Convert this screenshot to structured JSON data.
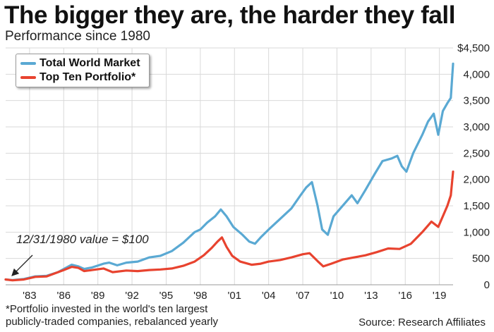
{
  "header": {
    "title": "The bigger they are, the harder they fall",
    "subtitle": "Performance since 1980"
  },
  "annotation": {
    "text": "12/31/1980 value = $100"
  },
  "footnote": "*Portfolio invested in the world's ten largest publicly-traded companies, rebalanced yearly",
  "source": "Source: Research Affiliates",
  "legend_placement": "top-left",
  "chart_data": {
    "type": "line",
    "title": "The bigger they are, the harder they fall",
    "subtitle": "Performance since 1980",
    "xlabel": "",
    "ylabel": "",
    "xlim": [
      1980.9,
      2020.2
    ],
    "ylim": [
      0,
      4500
    ],
    "grid": true,
    "x_ticks": [
      1983,
      1986,
      1989,
      1992,
      1995,
      1998,
      2001,
      2004,
      2007,
      2010,
      2013,
      2016,
      2019
    ],
    "x_tick_labels": [
      "'83",
      "'86",
      "'89",
      "'92",
      "'95",
      "'98",
      "'01",
      "'04",
      "'07",
      "'10",
      "'13",
      "'16",
      "'19"
    ],
    "y_ticks": [
      0,
      500,
      1000,
      1500,
      2000,
      2500,
      3000,
      3500,
      4000,
      4500
    ],
    "y_tick_labels": [
      "0",
      "500",
      "1,000",
      "1,500",
      "2,000",
      "2,500",
      "3,000",
      "3,500",
      "4,000",
      "$4,500"
    ],
    "series": [
      {
        "name": "Total World Market",
        "color": "#5aa9d3",
        "x": [
          1980.9,
          1981.5,
          1982.5,
          1983.5,
          1984.5,
          1985.5,
          1986.0,
          1986.7,
          1987.3,
          1987.8,
          1988.5,
          1989.5,
          1990.0,
          1990.7,
          1991.5,
          1992.5,
          1993.5,
          1994.5,
          1995.5,
          1996.5,
          1997.5,
          1998.0,
          1998.6,
          1999.3,
          1999.8,
          2000.3,
          2000.9,
          2001.7,
          2002.3,
          2002.8,
          2003.3,
          2004.0,
          2005.0,
          2006.0,
          2006.8,
          2007.3,
          2007.8,
          2008.3,
          2008.7,
          2009.2,
          2009.7,
          2010.3,
          2010.7,
          2011.3,
          2011.8,
          2012.5,
          2013.3,
          2014.0,
          2014.8,
          2015.3,
          2015.7,
          2016.1,
          2016.7,
          2017.5,
          2018.0,
          2018.5,
          2018.9,
          2019.3,
          2019.7,
          2020.0,
          2020.2
        ],
        "y": [
          100,
          90,
          110,
          160,
          170,
          240,
          300,
          380,
          350,
          300,
          330,
          400,
          420,
          370,
          420,
          440,
          520,
          550,
          640,
          800,
          1000,
          1050,
          1180,
          1300,
          1430,
          1300,
          1100,
          950,
          820,
          780,
          900,
          1050,
          1250,
          1450,
          1700,
          1850,
          1950,
          1500,
          1050,
          950,
          1300,
          1450,
          1550,
          1700,
          1550,
          1800,
          2100,
          2350,
          2400,
          2450,
          2250,
          2150,
          2500,
          2850,
          3100,
          3250,
          2850,
          3300,
          3450,
          3550,
          4200
        ]
      },
      {
        "name": "Top Ten Portfolio*",
        "color": "#e8432f",
        "x": [
          1980.9,
          1981.5,
          1982.5,
          1983.5,
          1984.5,
          1985.5,
          1986.0,
          1986.7,
          1987.3,
          1987.8,
          1988.5,
          1989.5,
          1990.3,
          1991.5,
          1992.5,
          1993.5,
          1994.5,
          1995.5,
          1996.5,
          1997.5,
          1998.3,
          1999.0,
          1999.5,
          1999.9,
          2000.3,
          2000.8,
          2001.5,
          2002.5,
          2003.3,
          2004.0,
          2005.0,
          2006.0,
          2007.0,
          2007.6,
          2008.3,
          2008.8,
          2009.5,
          2010.5,
          2011.5,
          2012.5,
          2013.5,
          2014.5,
          2015.5,
          2016.5,
          2017.5,
          2018.3,
          2018.9,
          2019.3,
          2019.7,
          2020.0,
          2020.2
        ],
        "y": [
          100,
          85,
          100,
          150,
          160,
          240,
          280,
          340,
          320,
          260,
          280,
          310,
          240,
          270,
          260,
          280,
          290,
          310,
          360,
          440,
          560,
          700,
          820,
          900,
          720,
          550,
          440,
          380,
          400,
          440,
          470,
          520,
          580,
          600,
          450,
          350,
          400,
          480,
          520,
          560,
          620,
          690,
          680,
          780,
          1000,
          1200,
          1100,
          1300,
          1500,
          1700,
          2150
        ]
      }
    ]
  }
}
